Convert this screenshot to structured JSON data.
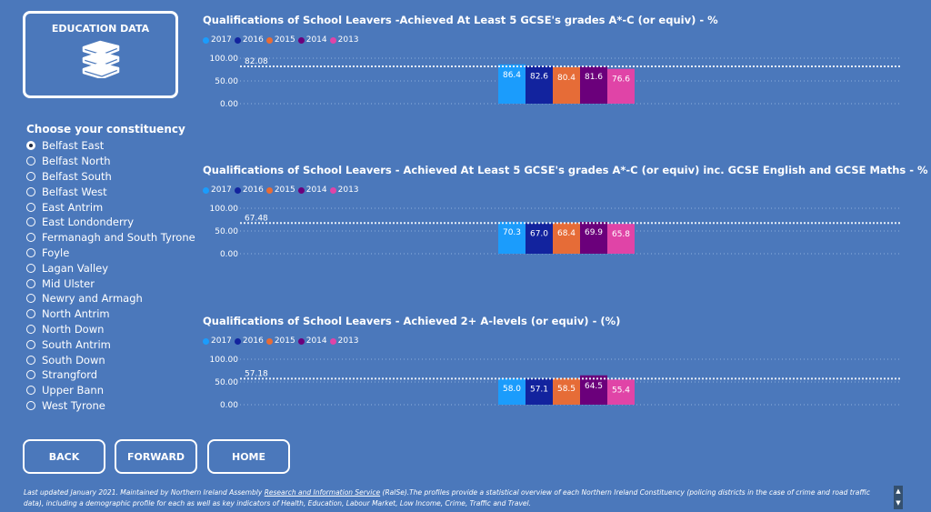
{
  "tile": {
    "title": "EDUCATION DATA",
    "icon": "books-icon"
  },
  "slicer": {
    "title": "Choose your constituency",
    "items": [
      {
        "label": "Belfast East",
        "selected": true
      },
      {
        "label": "Belfast North",
        "selected": false
      },
      {
        "label": "Belfast South",
        "selected": false
      },
      {
        "label": "Belfast West",
        "selected": false
      },
      {
        "label": "East Antrim",
        "selected": false
      },
      {
        "label": "East Londonderry",
        "selected": false
      },
      {
        "label": "Fermanagh and South Tyrone",
        "selected": false
      },
      {
        "label": "Foyle",
        "selected": false
      },
      {
        "label": "Lagan Valley",
        "selected": false
      },
      {
        "label": "Mid Ulster",
        "selected": false
      },
      {
        "label": "Newry and Armagh",
        "selected": false
      },
      {
        "label": "North Antrim",
        "selected": false
      },
      {
        "label": "North Down",
        "selected": false
      },
      {
        "label": "South Antrim",
        "selected": false
      },
      {
        "label": "South Down",
        "selected": false
      },
      {
        "label": "Strangford",
        "selected": false
      },
      {
        "label": "Upper Bann",
        "selected": false
      },
      {
        "label": "West Tyrone",
        "selected": false
      }
    ]
  },
  "nav": {
    "back": "BACK",
    "forward": "FORWARD",
    "home": "HOME"
  },
  "colors": {
    "background": "#4b78bb",
    "series": [
      "#1b9cfc",
      "#12239e",
      "#e66c37",
      "#6b007b",
      "#e044a7"
    ]
  },
  "legend": [
    "2017",
    "2016",
    "2015",
    "2014",
    "2013"
  ],
  "chart_data": [
    {
      "type": "bar",
      "title": "Qualifications of School Leavers -Achieved At Least 5 GCSE's grades A*-C (or equiv) - %",
      "categories": [
        "2017",
        "2016",
        "2015",
        "2014",
        "2013"
      ],
      "values": [
        86.4,
        82.6,
        80.4,
        81.6,
        76.6
      ],
      "labels": [
        "86.4",
        "82.6",
        "80.4",
        "81.6",
        "76.6"
      ],
      "reference_line": 82.08,
      "reference_label": "82.08",
      "yticks": [
        "100.00",
        "50.00",
        "0.00"
      ],
      "ylim": [
        0,
        100
      ],
      "grid": true,
      "legend_position": "top-left"
    },
    {
      "type": "bar",
      "title": "Qualifications of School Leavers - Achieved At Least 5 GCSE's grades A*-C (or equiv) inc. GCSE English and GCSE Maths - %",
      "categories": [
        "2017",
        "2016",
        "2015",
        "2014",
        "2013"
      ],
      "values": [
        70.3,
        67.0,
        68.4,
        69.9,
        65.8
      ],
      "labels": [
        "70.3",
        "67.0",
        "68.4",
        "69.9",
        "65.8"
      ],
      "reference_line": 67.48,
      "reference_label": "67.48",
      "yticks": [
        "100.00",
        "50.00",
        "0.00"
      ],
      "ylim": [
        0,
        100
      ],
      "grid": true,
      "legend_position": "top-left"
    },
    {
      "type": "bar",
      "title": "Qualifications of School Leavers - Achieved 2+ A-levels (or equiv) - (%)",
      "categories": [
        "2017",
        "2016",
        "2015",
        "2014",
        "2013"
      ],
      "values": [
        58.0,
        57.1,
        58.5,
        64.5,
        55.4
      ],
      "labels": [
        "58.0",
        "57.1",
        "58.5",
        "64.5",
        "55.4"
      ],
      "reference_line": 57.18,
      "reference_label": "57.18",
      "yticks": [
        "100.00",
        "50.00",
        "0.00"
      ],
      "ylim": [
        0,
        100
      ],
      "grid": true,
      "legend_position": "top-left"
    }
  ],
  "footer": {
    "text_before": "Last updated January 2021. Maintained by Northern Ireland Assembly ",
    "link": "Research and Information Service",
    "text_after": " (RaISe).The profiles provide a statistical overview of each Northern Ireland Constituency (policing districts in the case of crime and  road traffic data), including a demographic profile for each as well as key indicators of Health, Education, Labour Market, Low Income, Crime, Traffic and Travel."
  },
  "scroll": {
    "up": "▲",
    "down": "▼"
  }
}
